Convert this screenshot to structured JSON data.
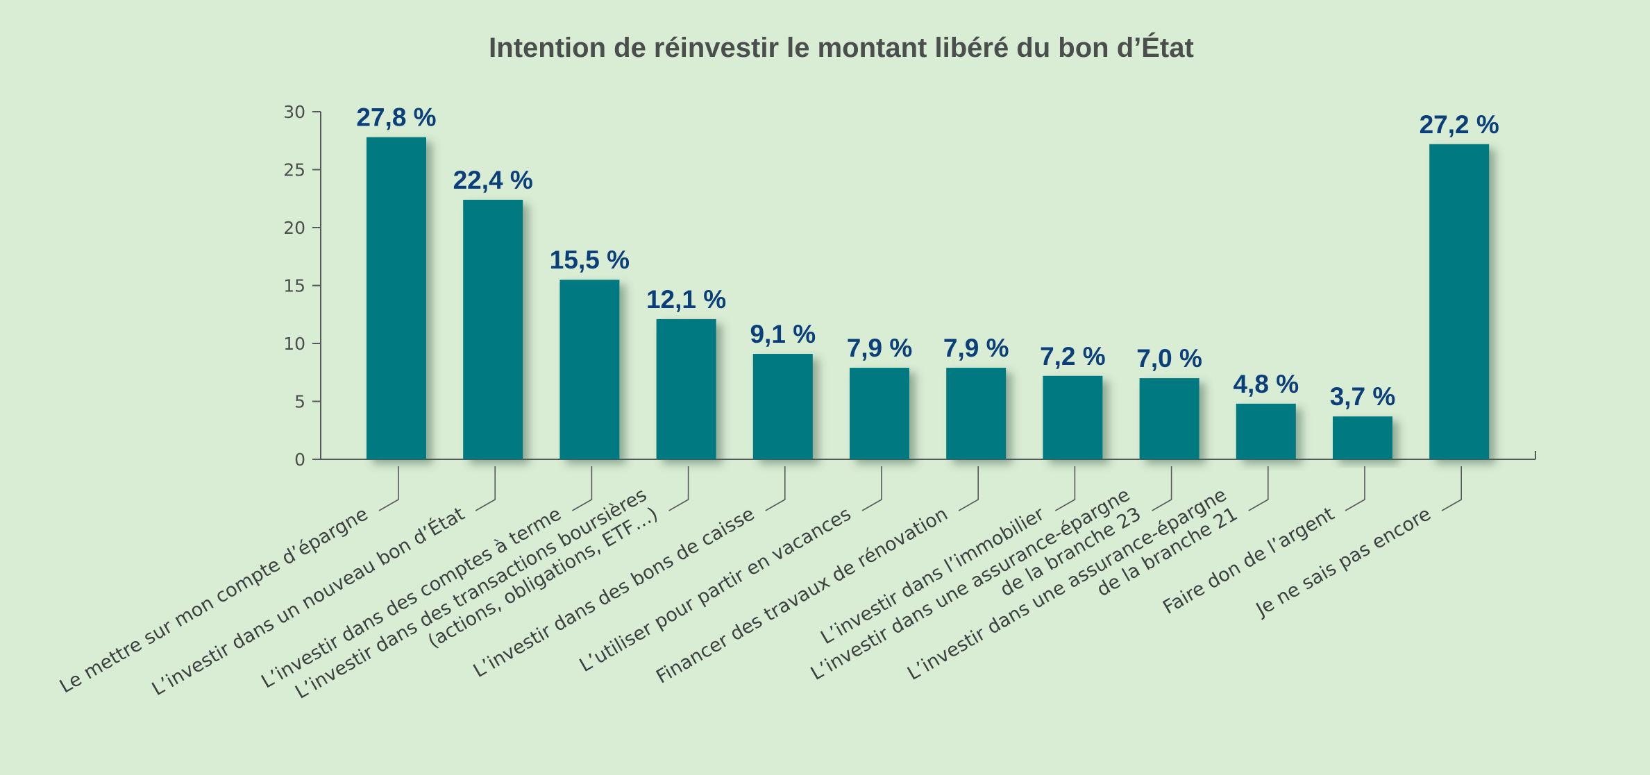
{
  "chart_data": {
    "type": "bar",
    "title": "Intention de réinvestir le montant libéré du bon d’État",
    "xlabel": "",
    "ylabel": "",
    "ylim": [
      0,
      30
    ],
    "yticks": [
      0,
      5,
      10,
      15,
      20,
      25,
      30
    ],
    "grid": false,
    "categories": [
      [
        "Le mettre sur mon compte d’épargne"
      ],
      [
        "L’investir dans un nouveau bon d’État"
      ],
      [
        "L’investir dans des comptes à terme"
      ],
      [
        "L’investir dans des transactions boursières",
        "(actions, obligations, ETF…)"
      ],
      [
        "L’investir dans des bons de caisse"
      ],
      [
        "L’utiliser pour partir en vacances"
      ],
      [
        "Financer des travaux de rénovation"
      ],
      [
        "L’investir dans l’immobilier"
      ],
      [
        "L’investir dans une assurance-épargne",
        "de la branche 23"
      ],
      [
        "L’investir dans une assurance-épargne",
        "de la branche 21"
      ],
      [
        "Faire don de l’argent"
      ],
      [
        "Je ne sais pas encore"
      ]
    ],
    "values": [
      27.8,
      22.4,
      15.5,
      12.1,
      9.1,
      7.9,
      7.9,
      7.2,
      7.0,
      4.8,
      3.7,
      27.2
    ],
    "value_labels": [
      "27,8 %",
      "22,4 %",
      "15,5 %",
      "12,1 %",
      "9,1 %",
      "7,9 %",
      "7,9 %",
      "7,2 %",
      "7,0 %",
      "4,8 %",
      "3,7 %",
      "27,2 %"
    ],
    "colors": {
      "bar": "#047a80",
      "value_label": "#0b3f7a",
      "background": "#d9ecd4",
      "text": "#4a4f4e"
    }
  }
}
